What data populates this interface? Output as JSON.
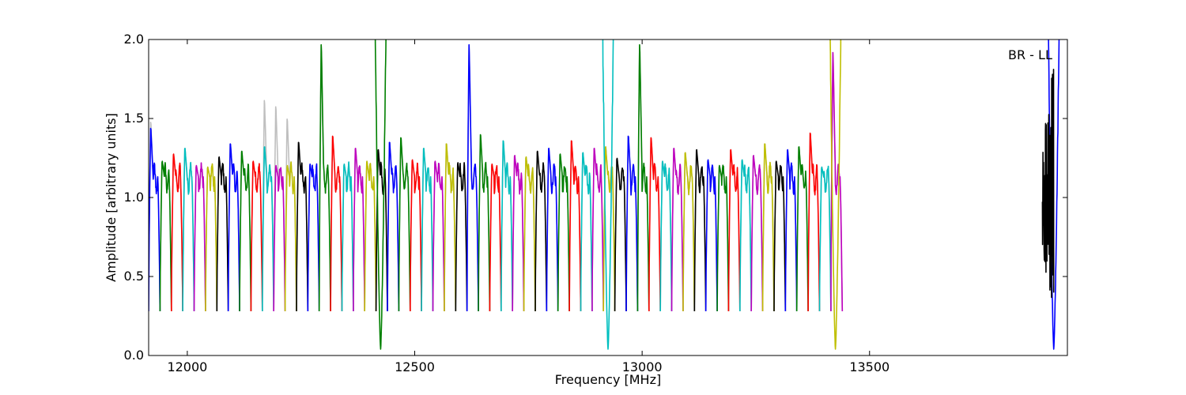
{
  "chart_data": {
    "type": "line",
    "xlabel": "Frequency [MHz]",
    "ylabel": "Amplitude [arbitrary units]",
    "xlim": [
      11915,
      13935
    ],
    "ylim": [
      0.0,
      2.0
    ],
    "x_ticks": [
      12000,
      12500,
      13000,
      13500
    ],
    "y_ticks": [
      0.0,
      0.5,
      1.0,
      1.5,
      2.0
    ],
    "x_tick_labels": [
      "12000",
      "12500",
      "13000",
      "13500"
    ],
    "y_tick_labels": [
      "0.0",
      "0.5",
      "1.0",
      "1.5",
      "2.0"
    ],
    "annotation": "BR - LL",
    "grid": false,
    "channel_width_mhz": 25,
    "first_channel_start_mhz": 11915,
    "color_cycle": [
      "#0000ff",
      "#008000",
      "#ff0000",
      "#00bfbf",
      "#bf00bf",
      "#bfbf00",
      "#000000"
    ],
    "background_trace_color": "#bfbfbf",
    "channel_peaks": [
      1.46,
      1.24,
      1.29,
      1.33,
      1.21,
      1.2,
      1.27,
      1.36,
      1.31,
      1.24,
      1.34,
      1.21,
      1.21,
      1.37,
      1.22,
      2.0,
      1.41,
      1.22,
      1.33,
      1.24,
      1.32,
      1.37,
      1.4,
      1.25,
      1.33,
      1.24,
      1.36,
      1.23,
      2.0,
      1.42,
      1.22,
      1.38,
      1.28,
      1.27,
      1.31,
      1.33,
      1.29,
      1.38,
      1.3,
      1.33,
      1.34,
      1.26,
      1.41,
      2.0,
      1.4,
      1.24,
      1.33,
      1.3,
      1.32,
      1.25,
      1.21,
      1.32,
      1.25,
      1.28,
      1.36,
      1.24,
      1.32,
      1.34,
      1.43,
      1.2,
      1.95
    ],
    "background_peaks": [
      1.5,
      1.24,
      1.29,
      1.33,
      1.21,
      1.2,
      1.27,
      1.36,
      1.31,
      1.24,
      1.64,
      1.6,
      1.52,
      1.37,
      1.22,
      2.0,
      1.41,
      1.22,
      1.33,
      1.24,
      1.32,
      1.37,
      1.4,
      1.25,
      1.33,
      1.24,
      1.36,
      1.23,
      2.0,
      1.42,
      1.22,
      1.38,
      1.28,
      1.27,
      1.31,
      1.33,
      1.29,
      1.38,
      1.3,
      1.33,
      1.34,
      1.26,
      1.41,
      2.0,
      1.4,
      1.24,
      1.33,
      1.3,
      1.32,
      1.25,
      1.21,
      1.32,
      1.25,
      1.28,
      1.36,
      1.24,
      1.32,
      1.34,
      1.43,
      1.2,
      1.95
    ],
    "channel_min": 0.28,
    "deep_dip_centers_mhz": [
      12425,
      12925,
      13425,
      13905
    ],
    "deep_dip_min": 0.04,
    "noise_region_mhz": [
      13880,
      13905
    ]
  }
}
